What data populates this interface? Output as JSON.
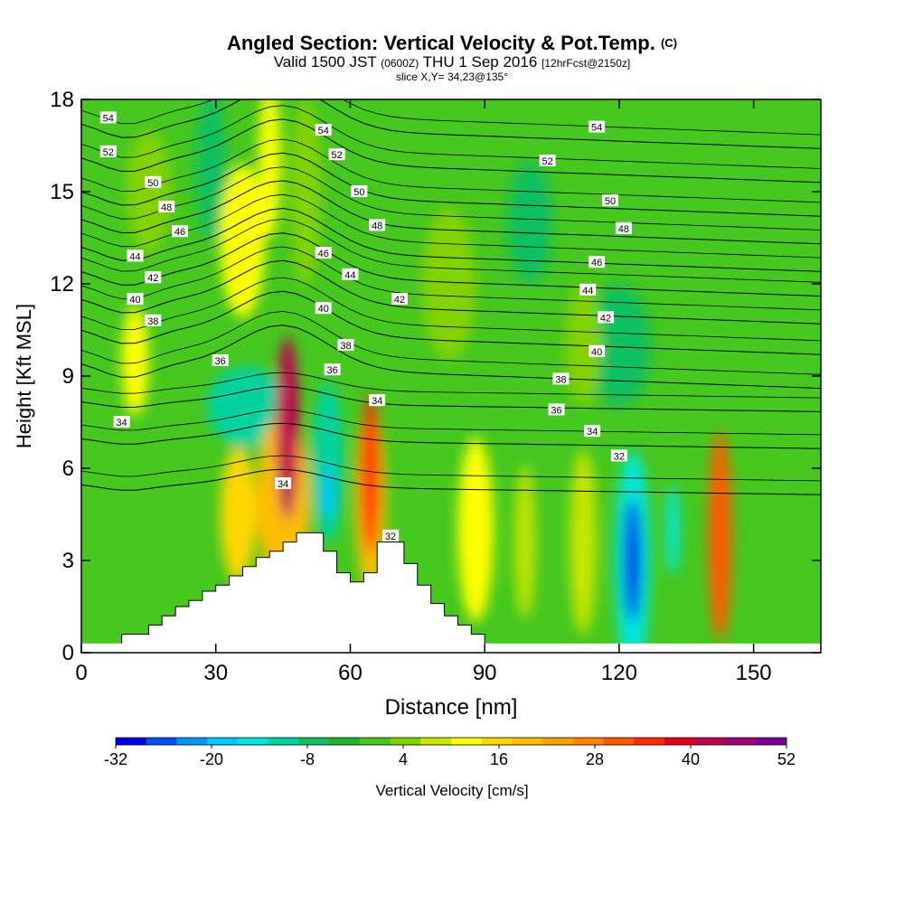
{
  "title": {
    "main": "Angled Section: Vertical Velocity & Pot.Temp.",
    "main_unit": "(C)",
    "valid_prefix": "Valid 1500 JST",
    "valid_utc": "(0600Z)",
    "valid_date": "THU 1 Sep 2016",
    "forecast": "[12hrFcst@2150z]",
    "slice": "slice X,Y= 34,23@135°"
  },
  "chart_data": {
    "type": "heatmap",
    "title": "Angled Section: Vertical Velocity & Pot.Temp.",
    "xlabel": "Distance [nm]",
    "ylabel": "Height [Kft MSL]",
    "xlim": [
      0,
      165
    ],
    "ylim": [
      0,
      18
    ],
    "x_ticks": [
      0,
      30,
      60,
      90,
      120,
      150
    ],
    "y_ticks": [
      0,
      3,
      6,
      9,
      12,
      15,
      18
    ],
    "colorbar": {
      "label": "Vertical Velocity [cm/s]",
      "tick_labels": [
        -32,
        -20,
        -8,
        4,
        16,
        28,
        40,
        52
      ],
      "min": -32,
      "max": 52,
      "step": 4,
      "colors": [
        "#0000e6",
        "#0050ff",
        "#0096ff",
        "#00c8ff",
        "#00e6dc",
        "#00d2a0",
        "#10c060",
        "#1eb42d",
        "#46c81e",
        "#82d200",
        "#c8e600",
        "#ffff00",
        "#ffd700",
        "#ffbe00",
        "#ffa000",
        "#ff8200",
        "#ff5a00",
        "#ff2800",
        "#e6001e",
        "#c00050",
        "#a00078",
        "#780096"
      ]
    },
    "velocity_features": [
      {
        "x": 46,
        "y": 7.3,
        "rx": 2.6,
        "ry": 3.0,
        "value": 44
      },
      {
        "x": 45,
        "y": 5.0,
        "rx": 6.0,
        "ry": 2.8,
        "value": 22
      },
      {
        "x": 35,
        "y": 4.5,
        "rx": 4.0,
        "ry": 2.2,
        "value": 18
      },
      {
        "x": 64.5,
        "y": 5.8,
        "rx": 2.0,
        "ry": 2.6,
        "value": 36
      },
      {
        "x": 64.5,
        "y": 5.0,
        "rx": 3.4,
        "ry": 3.0,
        "value": 20
      },
      {
        "x": 55,
        "y": 6.2,
        "rx": 3.5,
        "ry": 2.6,
        "value": -12
      },
      {
        "x": 55,
        "y": 5.2,
        "rx": 1.3,
        "ry": 0.9,
        "value": -18
      },
      {
        "x": 37,
        "y": 8.0,
        "rx": 9.0,
        "ry": 1.3,
        "value": -12
      },
      {
        "x": 88,
        "y": 4.0,
        "rx": 4.0,
        "ry": 3.0,
        "value": 13
      },
      {
        "x": 99,
        "y": 3.6,
        "rx": 2.2,
        "ry": 2.5,
        "value": 10
      },
      {
        "x": 112,
        "y": 3.6,
        "rx": 3.0,
        "ry": 3.0,
        "value": 8
      },
      {
        "x": 123,
        "y": 3.0,
        "rx": 4.0,
        "ry": 3.6,
        "value": -14
      },
      {
        "x": 123,
        "y": 3.0,
        "rx": 1.8,
        "ry": 2.0,
        "value": -30
      },
      {
        "x": 132,
        "y": 4.0,
        "rx": 1.5,
        "ry": 1.5,
        "value": -16
      },
      {
        "x": 142.5,
        "y": 3.8,
        "rx": 2.6,
        "ry": 3.4,
        "value": 34
      },
      {
        "x": 36,
        "y": 13.4,
        "rx": 5.0,
        "ry": 2.5,
        "value": 12
      },
      {
        "x": 42,
        "y": 16.0,
        "rx": 2.5,
        "ry": 2.5,
        "value": 12
      },
      {
        "x": 29,
        "y": 15.8,
        "rx": 3.5,
        "ry": 2.5,
        "value": -6
      },
      {
        "x": 15,
        "y": 15.0,
        "rx": 5.0,
        "ry": 2.0,
        "value": 6
      },
      {
        "x": 50,
        "y": 15.0,
        "rx": 3.5,
        "ry": 3.0,
        "value": 7
      },
      {
        "x": 82,
        "y": 12.0,
        "rx": 6.0,
        "ry": 2.5,
        "value": 5
      },
      {
        "x": 100,
        "y": 14.0,
        "rx": 5.0,
        "ry": 2.0,
        "value": -5
      },
      {
        "x": 120,
        "y": 10.0,
        "rx": 7.0,
        "ry": 2.0,
        "value": -6
      },
      {
        "x": 12,
        "y": 9.5,
        "rx": 3.0,
        "ry": 1.8,
        "value": 12
      },
      {
        "x": 112,
        "y": 10.0,
        "rx": 4.0,
        "ry": 2.0,
        "value": 6
      }
    ],
    "terrain": [
      {
        "x": 0,
        "h": 0
      },
      {
        "x": 9,
        "h": 0.6
      },
      {
        "x": 15,
        "h": 0.9
      },
      {
        "x": 18,
        "h": 1.2
      },
      {
        "x": 21,
        "h": 1.5
      },
      {
        "x": 24,
        "h": 1.7
      },
      {
        "x": 27,
        "h": 2.0
      },
      {
        "x": 30,
        "h": 2.2
      },
      {
        "x": 33,
        "h": 2.5
      },
      {
        "x": 36,
        "h": 2.8
      },
      {
        "x": 39,
        "h": 3.1
      },
      {
        "x": 42,
        "h": 3.3
      },
      {
        "x": 45,
        "h": 3.6
      },
      {
        "x": 48,
        "h": 3.9
      },
      {
        "x": 51,
        "h": 3.9
      },
      {
        "x": 54,
        "h": 3.3
      },
      {
        "x": 57,
        "h": 2.6
      },
      {
        "x": 60,
        "h": 2.3
      },
      {
        "x": 63,
        "h": 2.6
      },
      {
        "x": 66,
        "h": 3.6
      },
      {
        "x": 69,
        "h": 3.6
      },
      {
        "x": 72,
        "h": 2.9
      },
      {
        "x": 75,
        "h": 2.2
      },
      {
        "x": 78,
        "h": 1.6
      },
      {
        "x": 81,
        "h": 1.2
      },
      {
        "x": 84,
        "h": 0.9
      },
      {
        "x": 87,
        "h": 0.6
      },
      {
        "x": 90,
        "h": 0
      }
    ],
    "theta_levels": [
      32,
      34,
      36,
      38,
      40,
      42,
      44,
      46,
      48,
      50,
      52,
      54
    ],
    "contour_labels": [
      {
        "text": "54",
        "x": 6,
        "y": 17.4
      },
      {
        "text": "52",
        "x": 6,
        "y": 16.3
      },
      {
        "text": "50",
        "x": 16,
        "y": 15.3
      },
      {
        "text": "48",
        "x": 19,
        "y": 14.5
      },
      {
        "text": "46",
        "x": 22,
        "y": 13.7
      },
      {
        "text": "44",
        "x": 12,
        "y": 12.9
      },
      {
        "text": "42",
        "x": 16,
        "y": 12.2
      },
      {
        "text": "40",
        "x": 12,
        "y": 11.5
      },
      {
        "text": "38",
        "x": 16,
        "y": 10.8
      },
      {
        "text": "36",
        "x": 31,
        "y": 9.5
      },
      {
        "text": "34",
        "x": 9,
        "y": 7.5
      },
      {
        "text": "34",
        "x": 45,
        "y": 5.5
      },
      {
        "text": "54",
        "x": 54,
        "y": 17.0
      },
      {
        "text": "52",
        "x": 57,
        "y": 16.2
      },
      {
        "text": "50",
        "x": 62,
        "y": 15.0
      },
      {
        "text": "48",
        "x": 66,
        "y": 13.9
      },
      {
        "text": "46",
        "x": 54,
        "y": 13.0
      },
      {
        "text": "44",
        "x": 60,
        "y": 12.3
      },
      {
        "text": "42",
        "x": 71,
        "y": 11.5
      },
      {
        "text": "40",
        "x": 54,
        "y": 11.2
      },
      {
        "text": "38",
        "x": 59,
        "y": 10.0
      },
      {
        "text": "36",
        "x": 56,
        "y": 9.2
      },
      {
        "text": "34",
        "x": 66,
        "y": 8.2
      },
      {
        "text": "32",
        "x": 69,
        "y": 3.8
      },
      {
        "text": "54",
        "x": 115,
        "y": 17.1
      },
      {
        "text": "52",
        "x": 104,
        "y": 16.0
      },
      {
        "text": "50",
        "x": 118,
        "y": 14.7
      },
      {
        "text": "48",
        "x": 121,
        "y": 13.8
      },
      {
        "text": "46",
        "x": 115,
        "y": 12.7
      },
      {
        "text": "44",
        "x": 113,
        "y": 11.8
      },
      {
        "text": "42",
        "x": 117,
        "y": 10.9
      },
      {
        "text": "40",
        "x": 115,
        "y": 9.8
      },
      {
        "text": "38",
        "x": 107,
        "y": 8.9
      },
      {
        "text": "36",
        "x": 106,
        "y": 7.9
      },
      {
        "text": "34",
        "x": 114,
        "y": 7.2
      },
      {
        "text": "32",
        "x": 120,
        "y": 6.4
      }
    ]
  }
}
